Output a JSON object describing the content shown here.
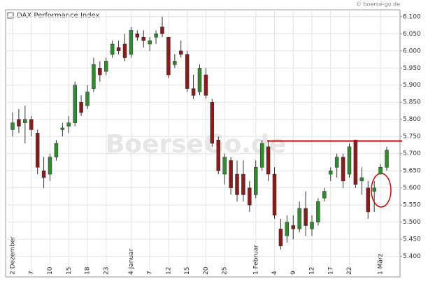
{
  "chart_data": {
    "type": "candlestick",
    "title": "DAX Performance Index",
    "source": "© boerse-go.de",
    "watermark": "BoerseGo.de",
    "categories": [
      "2 Dezember",
      null,
      null,
      "7",
      null,
      null,
      "10",
      null,
      null,
      "15",
      null,
      null,
      "18",
      null,
      null,
      "23",
      null,
      null,
      null,
      "4 Januar",
      null,
      null,
      "7",
      null,
      null,
      "12",
      null,
      null,
      "15",
      null,
      null,
      "20",
      null,
      null,
      "25",
      null,
      null,
      null,
      null,
      "1 Februar",
      null,
      null,
      "4",
      null,
      null,
      "9",
      null,
      null,
      "12",
      null,
      null,
      "17",
      null,
      null,
      "22",
      null,
      null,
      null,
      null,
      "1 März",
      null
    ],
    "open": [
      5770,
      5800,
      5790,
      5800,
      5760,
      5650,
      5640,
      5690,
      5770,
      5780,
      5790,
      5850,
      5840,
      5890,
      5950,
      5940,
      5990,
      6010,
      6020,
      5990,
      6050,
      6040,
      6020,
      6040,
      6070,
      6040,
      5960,
      6000,
      5990,
      5890,
      5880,
      5930,
      5850,
      5740,
      5640,
      5680,
      5640,
      5640,
      5600,
      5580,
      5660,
      5720,
      5640,
      5480,
      5460,
      5490,
      5480,
      5540,
      5480,
      5500,
      5570,
      5640,
      5660,
      5690,
      5640,
      5740,
      5620,
      5600,
      5590,
      5640,
      5660
    ],
    "high": [
      5820,
      5830,
      5840,
      5810,
      5770,
      5690,
      5700,
      5740,
      5790,
      5810,
      5910,
      5870,
      5900,
      5980,
      5970,
      5980,
      6030,
      6030,
      6050,
      6070,
      6060,
      6060,
      6040,
      6060,
      6100,
      6040,
      5990,
      6030,
      6000,
      5930,
      5960,
      5950,
      5860,
      5750,
      5700,
      5690,
      5680,
      5680,
      5620,
      5680,
      5740,
      5740,
      5660,
      5510,
      5520,
      5520,
      5560,
      5590,
      5520,
      5570,
      5600,
      5660,
      5700,
      5700,
      5730,
      5740,
      5660,
      5620,
      5620,
      5670,
      5720
    ],
    "low": [
      5750,
      5760,
      5730,
      5750,
      5640,
      5600,
      5620,
      5680,
      5750,
      5760,
      5780,
      5810,
      5830,
      5880,
      5910,
      5930,
      5980,
      5990,
      5970,
      5980,
      6030,
      6010,
      6000,
      6020,
      6040,
      5920,
      5950,
      5980,
      5880,
      5860,
      5870,
      5860,
      5720,
      5640,
      5610,
      5580,
      5560,
      5560,
      5530,
      5570,
      5650,
      5620,
      5510,
      5420,
      5440,
      5450,
      5470,
      5460,
      5460,
      5490,
      5560,
      5620,
      5630,
      5600,
      5630,
      5600,
      5580,
      5510,
      5530,
      5640,
      5650
    ],
    "close": [
      5790,
      5780,
      5800,
      5770,
      5660,
      5630,
      5690,
      5730,
      5775,
      5790,
      5900,
      5820,
      5880,
      5960,
      5930,
      5970,
      6020,
      6000,
      5980,
      6060,
      6040,
      6030,
      6030,
      6050,
      6050,
      5930,
      5970,
      5990,
      5890,
      5870,
      5950,
      5870,
      5730,
      5650,
      5690,
      5600,
      5580,
      5580,
      5550,
      5660,
      5730,
      5640,
      5520,
      5430,
      5500,
      5480,
      5540,
      5490,
      5500,
      5560,
      5590,
      5650,
      5690,
      5620,
      5720,
      5610,
      5630,
      5530,
      5600,
      5660,
      5710
    ],
    "up_color": "#2e8b2e",
    "down_color": "#8b1a1a",
    "ylim": [
      5340,
      6120
    ],
    "yticks": [
      {
        "value": 5400,
        "label": "5.400"
      },
      {
        "value": 5450,
        "label": "5.450"
      },
      {
        "value": 5500,
        "label": "5.500"
      },
      {
        "value": 5550,
        "label": "5.550"
      },
      {
        "value": 5600,
        "label": "5.600"
      },
      {
        "value": 5650,
        "label": "5.650"
      },
      {
        "value": 5700,
        "label": "5.700"
      },
      {
        "value": 5750,
        "label": "5.750"
      },
      {
        "value": 5800,
        "label": "5.800"
      },
      {
        "value": 5850,
        "label": "5.850"
      },
      {
        "value": 5900,
        "label": "5.900"
      },
      {
        "value": 5950,
        "label": "5.950"
      },
      {
        "value": 6000,
        "label": "6.000"
      },
      {
        "value": 6050,
        "label": "6.050"
      },
      {
        "value": 6100,
        "label": "6.100"
      }
    ],
    "hline": {
      "value": 5737,
      "color": "#e00000"
    },
    "grid": true
  }
}
